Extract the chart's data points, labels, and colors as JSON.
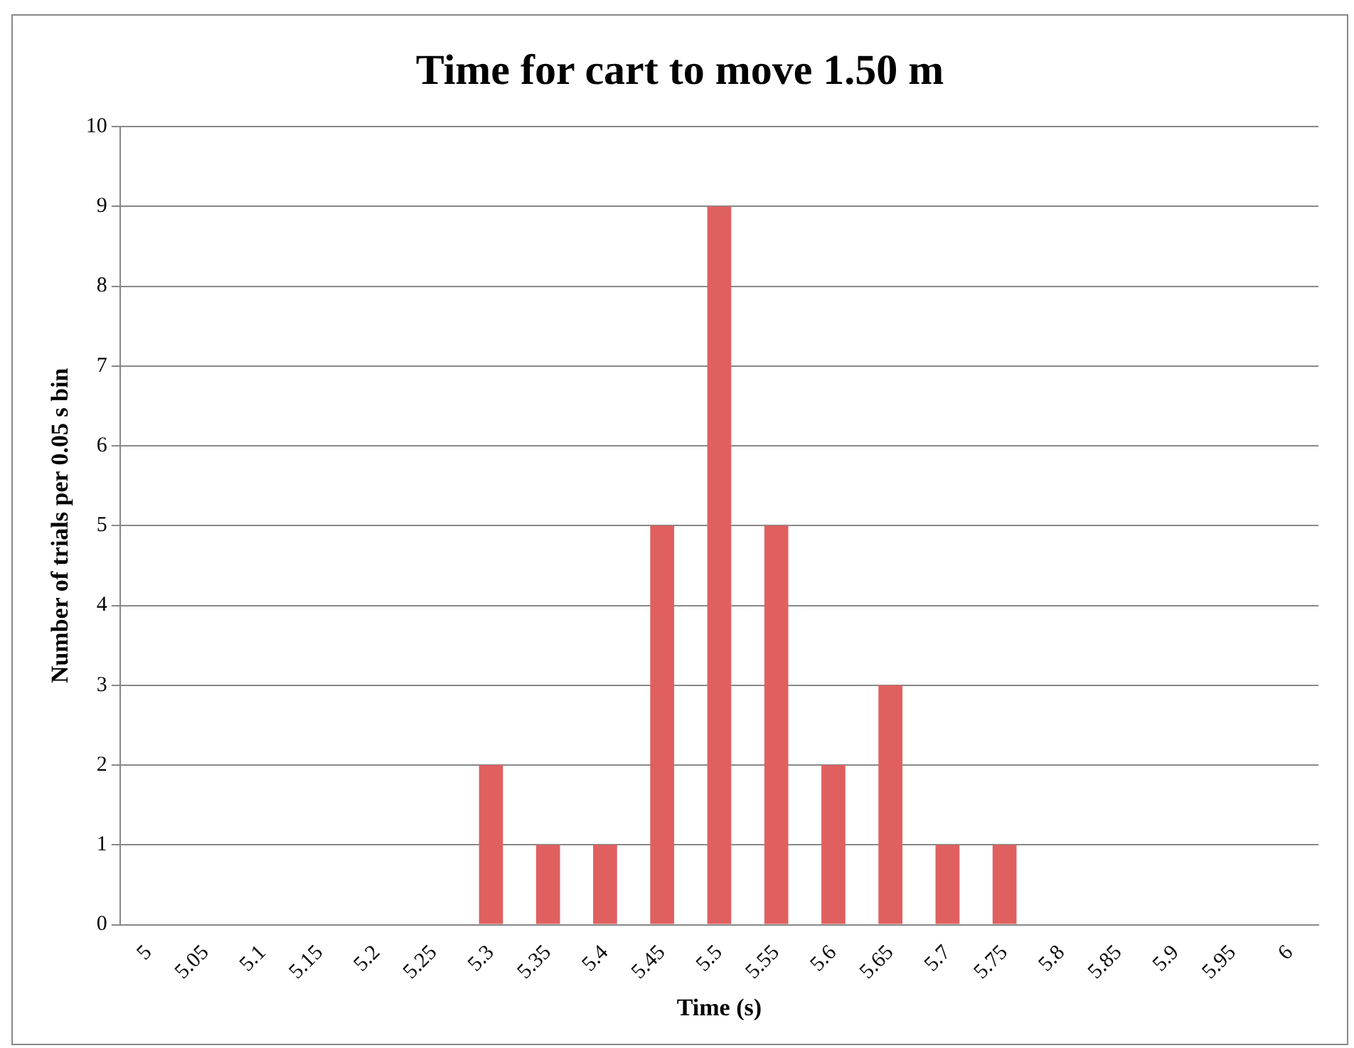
{
  "chart_data": {
    "type": "bar",
    "title": "Time for cart to move 1.50 m",
    "xlabel": "Time (s)",
    "ylabel": "Number of trials per 0.05 s bin",
    "categories": [
      "5",
      "5.05",
      "5.1",
      "5.15",
      "5.2",
      "5.25",
      "5.3",
      "5.35",
      "5.4",
      "5.45",
      "5.5",
      "5.55",
      "5.6",
      "5.65",
      "5.7",
      "5.75",
      "5.8",
      "5.85",
      "5.9",
      "5.95",
      "6"
    ],
    "values": [
      0,
      0,
      0,
      0,
      0,
      0,
      2,
      1,
      1,
      5,
      9,
      5,
      2,
      3,
      1,
      1,
      0,
      0,
      0,
      0,
      0
    ],
    "color": "#e06060",
    "ylim": [
      0,
      10
    ],
    "yticks": [
      0,
      1,
      2,
      3,
      4,
      5,
      6,
      7,
      8,
      9,
      10
    ],
    "grid": "y",
    "legend": false
  }
}
